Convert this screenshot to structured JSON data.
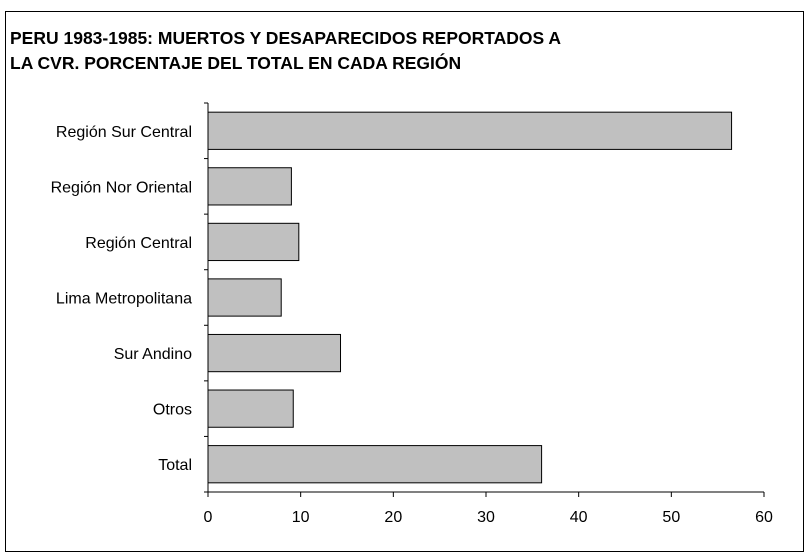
{
  "chart_data": {
    "type": "bar",
    "orientation": "horizontal",
    "title": "PERU 1983-1985: MUERTOS Y DESAPARECIDOS REPORTADOS A\nLA CVR. PORCENTAJE DEL TOTAL EN CADA REGIÓN",
    "categories": [
      "Región Sur Central",
      "Región Nor Oriental",
      "Región Central",
      "Lima Metropolitana",
      "Sur Andino",
      "Otros",
      "Total"
    ],
    "values": [
      56.5,
      9.0,
      9.8,
      7.9,
      14.3,
      9.2,
      36.0
    ],
    "xlim": [
      0,
      60
    ],
    "xticks": [
      0,
      10,
      20,
      30,
      40,
      50,
      60
    ],
    "bar_color": "#c0c0c0",
    "grid": false,
    "legend": "none"
  }
}
